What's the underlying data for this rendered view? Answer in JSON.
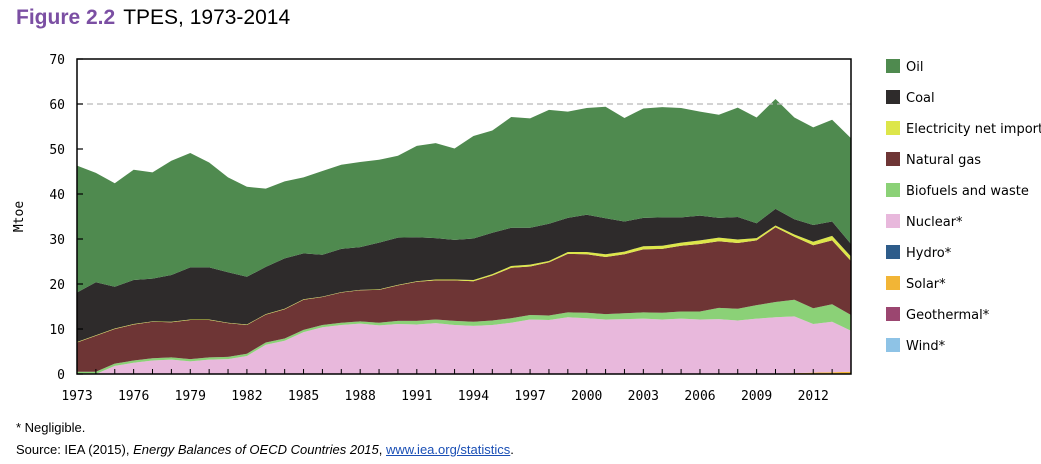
{
  "figure": {
    "number": "Figure 2.2",
    "title": "TPES, 1973-2014"
  },
  "footnote": "* Negligible.",
  "source": {
    "prefix": "Source: IEA (2015), ",
    "publication": "Energy Balances of OECD Countries 2015",
    "separator": ", ",
    "link": "www.iea.org/statistics",
    "suffix": "."
  },
  "chart_data": {
    "type": "area",
    "stacked": true,
    "title": "",
    "xlabel": "",
    "ylabel": "Mtoe",
    "ylim": [
      0,
      70
    ],
    "yticks": [
      0,
      10,
      20,
      30,
      40,
      50,
      60,
      70
    ],
    "xlim": [
      1973,
      2014
    ],
    "xticks": [
      1973,
      1976,
      1979,
      1982,
      1985,
      1988,
      1991,
      1994,
      1997,
      2000,
      2003,
      2006,
      2009,
      2012
    ],
    "grid": "dashed lines at 60",
    "legend_position": "right",
    "x": [
      1973,
      1974,
      1975,
      1976,
      1977,
      1978,
      1979,
      1980,
      1981,
      1982,
      1983,
      1984,
      1985,
      1986,
      1987,
      1988,
      1989,
      1990,
      1991,
      1992,
      1993,
      1994,
      1995,
      1996,
      1997,
      1998,
      1999,
      2000,
      2001,
      2002,
      2003,
      2004,
      2005,
      2006,
      2007,
      2008,
      2009,
      2010,
      2011,
      2012,
      2013,
      2014
    ],
    "series": [
      {
        "name": "Wind*",
        "color": "#8ec3e6",
        "values": [
          0,
          0,
          0,
          0,
          0,
          0,
          0,
          0,
          0,
          0,
          0,
          0,
          0,
          0,
          0,
          0,
          0,
          0,
          0,
          0,
          0,
          0,
          0,
          0,
          0,
          0,
          0,
          0,
          0,
          0,
          0,
          0,
          0,
          0,
          0,
          0,
          0,
          0,
          0,
          0,
          0,
          0
        ]
      },
      {
        "name": "Geothermal*",
        "color": "#9b4670",
        "values": [
          0,
          0,
          0,
          0,
          0,
          0,
          0,
          0,
          0,
          0,
          0,
          0,
          0,
          0,
          0,
          0,
          0,
          0,
          0,
          0,
          0,
          0,
          0,
          0,
          0,
          0,
          0,
          0,
          0,
          0,
          0,
          0,
          0,
          0,
          0,
          0,
          0,
          0,
          0,
          0,
          0,
          0
        ]
      },
      {
        "name": "Solar*",
        "color": "#f2b536",
        "values": [
          0,
          0,
          0,
          0,
          0,
          0,
          0,
          0,
          0,
          0,
          0,
          0,
          0,
          0,
          0,
          0,
          0,
          0,
          0,
          0,
          0,
          0,
          0,
          0,
          0,
          0,
          0,
          0,
          0,
          0,
          0,
          0,
          0,
          0,
          0,
          0,
          0,
          0.1,
          0.2,
          0.3,
          0.4,
          0.5
        ]
      },
      {
        "name": "Hydro*",
        "color": "#2e5c8a",
        "values": [
          0,
          0,
          0,
          0,
          0,
          0,
          0,
          0,
          0,
          0,
          0,
          0,
          0,
          0,
          0,
          0,
          0,
          0,
          0,
          0,
          0,
          0,
          0,
          0,
          0,
          0,
          0,
          0,
          0,
          0,
          0,
          0,
          0,
          0,
          0,
          0,
          0,
          0,
          0,
          0,
          0,
          0
        ]
      },
      {
        "name": "Nuclear*",
        "color": "#e8b8dc",
        "values": [
          0,
          0,
          1.8,
          2.5,
          3.0,
          3.2,
          2.8,
          3.2,
          3.3,
          4.0,
          6.5,
          7.4,
          9.3,
          10.4,
          10.9,
          11.2,
          10.8,
          11.1,
          11.0,
          11.3,
          10.9,
          10.7,
          10.9,
          11.4,
          12.1,
          12.0,
          12.6,
          12.4,
          12.1,
          12.2,
          12.3,
          12.1,
          12.3,
          12.1,
          12.2,
          11.9,
          12.3,
          12.5,
          12.6,
          10.8,
          11.2,
          9.1
        ]
      },
      {
        "name": "Biofuels and waste",
        "color": "#8bd177",
        "values": [
          0.5,
          0.5,
          0.5,
          0.5,
          0.5,
          0.5,
          0.5,
          0.5,
          0.5,
          0.5,
          0.5,
          0.5,
          0.5,
          0.5,
          0.5,
          0.5,
          0.6,
          0.7,
          0.8,
          0.8,
          0.9,
          0.9,
          1.0,
          1.0,
          1.0,
          1.0,
          1.1,
          1.2,
          1.2,
          1.3,
          1.4,
          1.5,
          1.6,
          1.8,
          2.5,
          2.6,
          3.0,
          3.4,
          3.7,
          3.5,
          3.9,
          3.5
        ]
      },
      {
        "name": "Natural gas",
        "color": "#6e3535",
        "values": [
          6.5,
          8.0,
          7.7,
          8.0,
          8.1,
          7.8,
          8.7,
          8.3,
          7.5,
          6.4,
          6.2,
          6.5,
          6.7,
          6.2,
          6.7,
          6.9,
          7.3,
          7.9,
          8.7,
          8.7,
          9.0,
          9.0,
          10.0,
          11.2,
          10.8,
          11.8,
          13.0,
          13.0,
          12.7,
          13.1,
          14.0,
          14.2,
          14.6,
          15.0,
          14.8,
          14.6,
          14.4,
          16.6,
          14.0,
          14.0,
          14.2,
          12.0
        ]
      },
      {
        "name": "Electricity net imports",
        "color": "#dde64a",
        "values": [
          0.1,
          0.1,
          0.1,
          0.1,
          0.1,
          0.1,
          0.1,
          0.1,
          0.1,
          0.1,
          0.1,
          0.1,
          0.1,
          0.1,
          0.1,
          0.1,
          0.1,
          0.1,
          0.1,
          0.2,
          0.2,
          0.3,
          0.3,
          0.4,
          0.4,
          0.3,
          0.4,
          0.5,
          0.6,
          0.6,
          0.7,
          0.7,
          0.7,
          0.8,
          0.8,
          0.8,
          0.5,
          0.4,
          0.5,
          0.8,
          1.0,
          1.0
        ]
      },
      {
        "name": "Coal",
        "color": "#2e2b2b",
        "values": [
          11.0,
          11.8,
          9.3,
          9.8,
          9.5,
          10.4,
          11.6,
          11.6,
          11.2,
          10.6,
          10.5,
          11.2,
          10.2,
          9.3,
          9.6,
          9.5,
          10.4,
          10.5,
          9.8,
          9.2,
          8.8,
          9.2,
          9.2,
          8.5,
          8.2,
          8.3,
          7.6,
          8.3,
          8.0,
          6.7,
          6.3,
          6.3,
          5.6,
          5.5,
          4.4,
          5.0,
          3.3,
          3.7,
          3.4,
          3.7,
          3.2,
          2.8
        ]
      },
      {
        "name": "Oil",
        "color": "#4f8a4f",
        "values": [
          28.2,
          24.3,
          23.0,
          24.5,
          23.6,
          25.4,
          25.4,
          23.3,
          21.1,
          20.0,
          17.4,
          17.1,
          16.9,
          18.6,
          18.7,
          18.9,
          18.4,
          18.2,
          20.3,
          21.1,
          20.3,
          22.8,
          22.7,
          24.6,
          24.3,
          25.3,
          23.6,
          23.7,
          24.8,
          23.0,
          24.3,
          24.5,
          24.3,
          23.1,
          22.9,
          24.3,
          23.5,
          24.4,
          22.6,
          21.7,
          22.6,
          23.5
        ]
      }
    ]
  },
  "legend": {
    "items": [
      "Oil",
      "Coal",
      "Electricity net imports",
      "Natural gas",
      "Biofuels and waste",
      "Nuclear*",
      "Hydro*",
      "Solar*",
      "Geothermal*",
      "Wind*"
    ],
    "colors": [
      "#4f8a4f",
      "#2e2b2b",
      "#dde64a",
      "#6e3535",
      "#8bd177",
      "#e8b8dc",
      "#2e5c8a",
      "#f2b536",
      "#9b4670",
      "#8ec3e6"
    ]
  }
}
